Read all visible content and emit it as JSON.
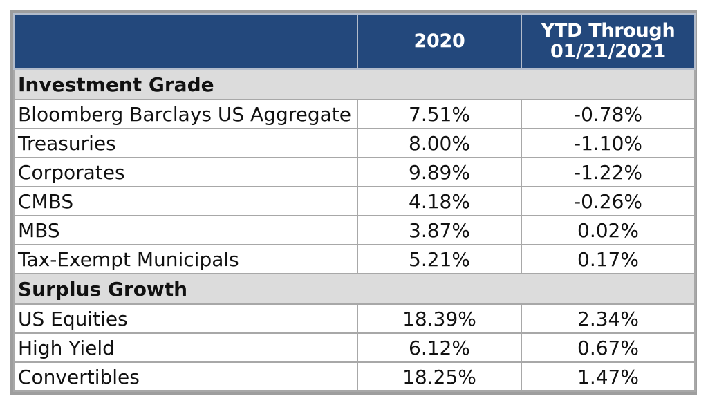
{
  "chart_data": {
    "type": "table",
    "columns": [
      "",
      "2020",
      "YTD Through 01/21/2021"
    ],
    "column_header_lines": {
      "col2": "2020",
      "col3_line1": "YTD Through",
      "col3_line2": "01/21/2021"
    },
    "sections": [
      {
        "name": "Investment Grade",
        "rows": [
          {
            "label": "Bloomberg Barclays US Aggregate",
            "y2020": "7.51%",
            "ytd": "-0.78%"
          },
          {
            "label": "Treasuries",
            "y2020": "8.00%",
            "ytd": "-1.10%"
          },
          {
            "label": "Corporates",
            "y2020": "9.89%",
            "ytd": "-1.22%"
          },
          {
            "label": "CMBS",
            "y2020": "4.18%",
            "ytd": "-0.26%"
          },
          {
            "label": "MBS",
            "y2020": "3.87%",
            "ytd": "0.02%"
          },
          {
            "label": "Tax-Exempt Municipals",
            "y2020": "5.21%",
            "ytd": "0.17%"
          }
        ]
      },
      {
        "name": "Surplus Growth",
        "rows": [
          {
            "label": "US Equities",
            "y2020": "18.39%",
            "ytd": "2.34%"
          },
          {
            "label": "High Yield",
            "y2020": "6.12%",
            "ytd": "0.67%"
          },
          {
            "label": "Convertibles",
            "y2020": "18.25%",
            "ytd": "1.47%"
          }
        ]
      }
    ],
    "colors": {
      "header_bg": "#23487c",
      "section_bg": "#dcdcdc",
      "border": "#a8a8a8"
    }
  }
}
